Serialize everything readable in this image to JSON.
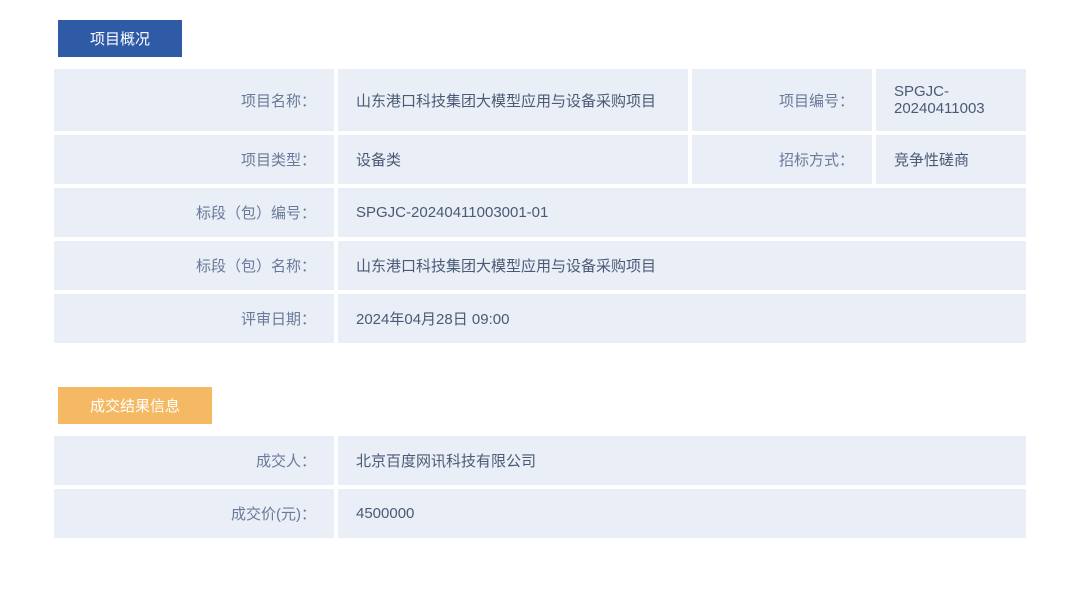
{
  "overview": {
    "header": "项目概况",
    "rows": {
      "project_name_label": "项目名称：",
      "project_name_value": "山东港口科技集团大模型应用与设备采购项目",
      "project_no_label": "项目编号：",
      "project_no_value": "SPGJC-20240411003",
      "project_type_label": "项目类型：",
      "project_type_value": "设备类",
      "bid_method_label": "招标方式：",
      "bid_method_value": "竞争性磋商",
      "section_no_label": "标段（包）编号：",
      "section_no_value": "SPGJC-20240411003001-01",
      "section_name_label": "标段（包）名称：",
      "section_name_value": "山东港口科技集团大模型应用与设备采购项目",
      "review_date_label": "评审日期：",
      "review_date_value": "2024年04月28日 09:00"
    }
  },
  "result": {
    "header": "成交结果信息",
    "rows": {
      "winner_label": "成交人：",
      "winner_value": "北京百度网讯科技有限公司",
      "price_label": "成交价(元)：",
      "price_value": "4500000"
    }
  },
  "colors": {
    "header_blue": "#2e5aa6",
    "header_orange": "#f4b962",
    "cell_bg": "#e9eef7",
    "label_text": "#6a7a99",
    "value_text": "#4a5a75"
  }
}
